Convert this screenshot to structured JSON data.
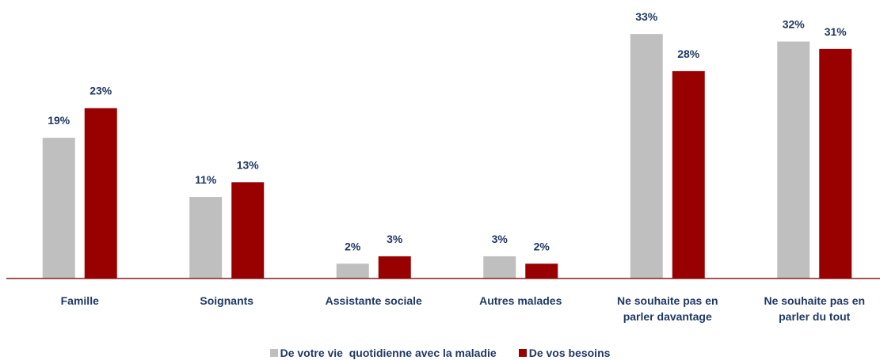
{
  "chart_data": {
    "type": "bar",
    "categories": [
      "Famille",
      "Soignants",
      "Assistante sociale",
      "Autres malades",
      "Ne souhaite pas en parler davantage",
      "Ne souhaite pas en parler du tout"
    ],
    "series": [
      {
        "name": "De votre vie  quotidienne avec la maladie",
        "color": "#bfbfbf",
        "values": [
          19,
          11,
          2,
          3,
          33,
          32
        ],
        "value_labels": [
          "19%",
          "11%",
          "2%",
          "3%",
          "33%",
          "32%"
        ]
      },
      {
        "name": "De vos besoins",
        "color": "#990000",
        "values": [
          23,
          13,
          3,
          2,
          28,
          31
        ],
        "value_labels": [
          "23%",
          "13%",
          "3%",
          "2%",
          "28%",
          "31%"
        ]
      }
    ],
    "ylim": [
      0,
      35
    ]
  }
}
